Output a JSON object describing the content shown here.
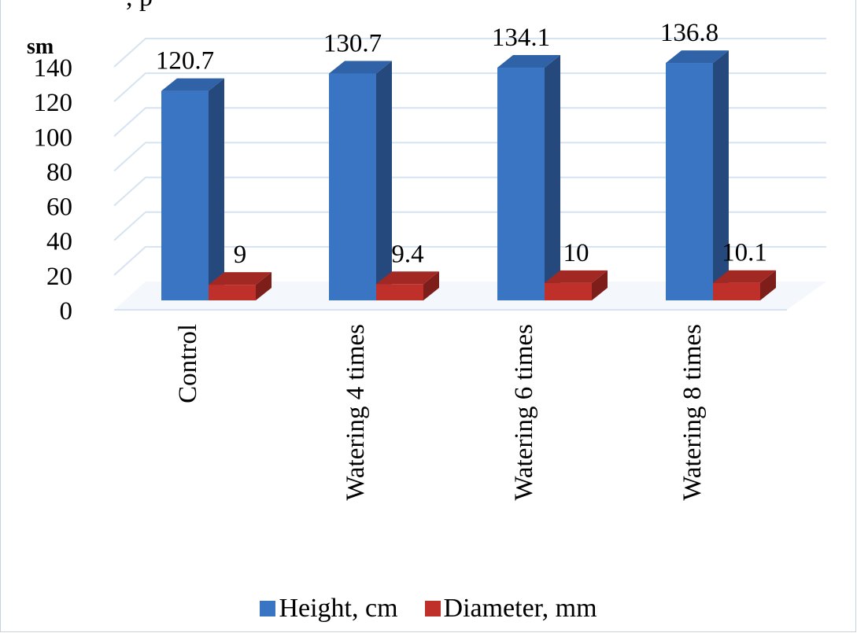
{
  "page": {
    "top_fragment": "        ,    p"
  },
  "chart_data": {
    "type": "bar",
    "ylabel": "sm",
    "ylim": [
      0,
      140
    ],
    "yticks": [
      0,
      20,
      40,
      60,
      80,
      100,
      120,
      140
    ],
    "categories": [
      "Control",
      "Watering 4 times",
      "Watering 6 times",
      "Watering 8 times"
    ],
    "series": [
      {
        "name": "Height, cm",
        "values": [
          120.7,
          130.7,
          134.1,
          136.8
        ],
        "color": "#3a75c4",
        "color_side": "#25497c",
        "color_top": "#2f62a6"
      },
      {
        "name": "Diameter, mm",
        "values": [
          9,
          9.4,
          10,
          10.1
        ],
        "color": "#c0302a",
        "color_side": "#7e1e1a",
        "color_top": "#a22824"
      }
    ],
    "grid": true,
    "legend_position": "bottom"
  }
}
